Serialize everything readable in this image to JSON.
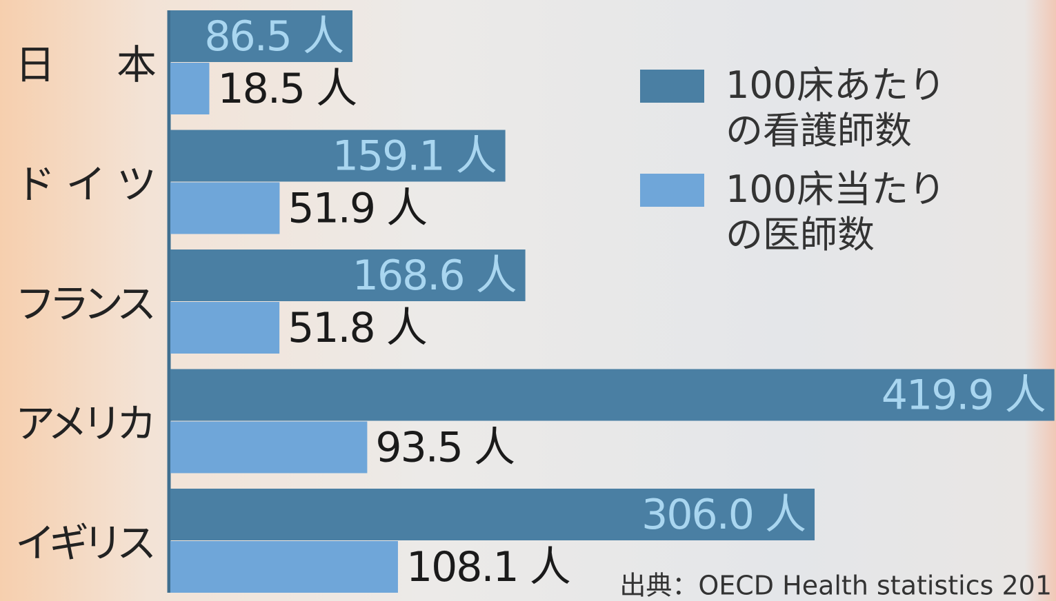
{
  "chart_data": {
    "type": "bar",
    "orientation": "horizontal",
    "categories": [
      "日本",
      "ドイツ",
      "フランス",
      "アメリカ",
      "イギリス"
    ],
    "series": [
      {
        "name": "100床あたりの看護師数",
        "color": "#4a7fa3",
        "label_color": "#a9d6f0",
        "values": [
          86.5,
          159.1,
          168.6,
          419.9,
          306.0
        ],
        "value_labels": [
          "86.5 人",
          "159.1 人",
          "168.6 人",
          "419.9 人",
          "306.0 人"
        ]
      },
      {
        "name": "100床当たりの医師数",
        "color": "#6fa6d9",
        "label_color": "#1a1a1a",
        "values": [
          18.5,
          51.9,
          51.8,
          93.5,
          108.1
        ],
        "value_labels": [
          "18.5 人",
          "51.9 人",
          "51.8 人",
          "93.5 人",
          "108.1 人"
        ]
      }
    ],
    "xlim": [
      0,
      420
    ],
    "source": "出典：OECD Health statistics 201"
  }
}
